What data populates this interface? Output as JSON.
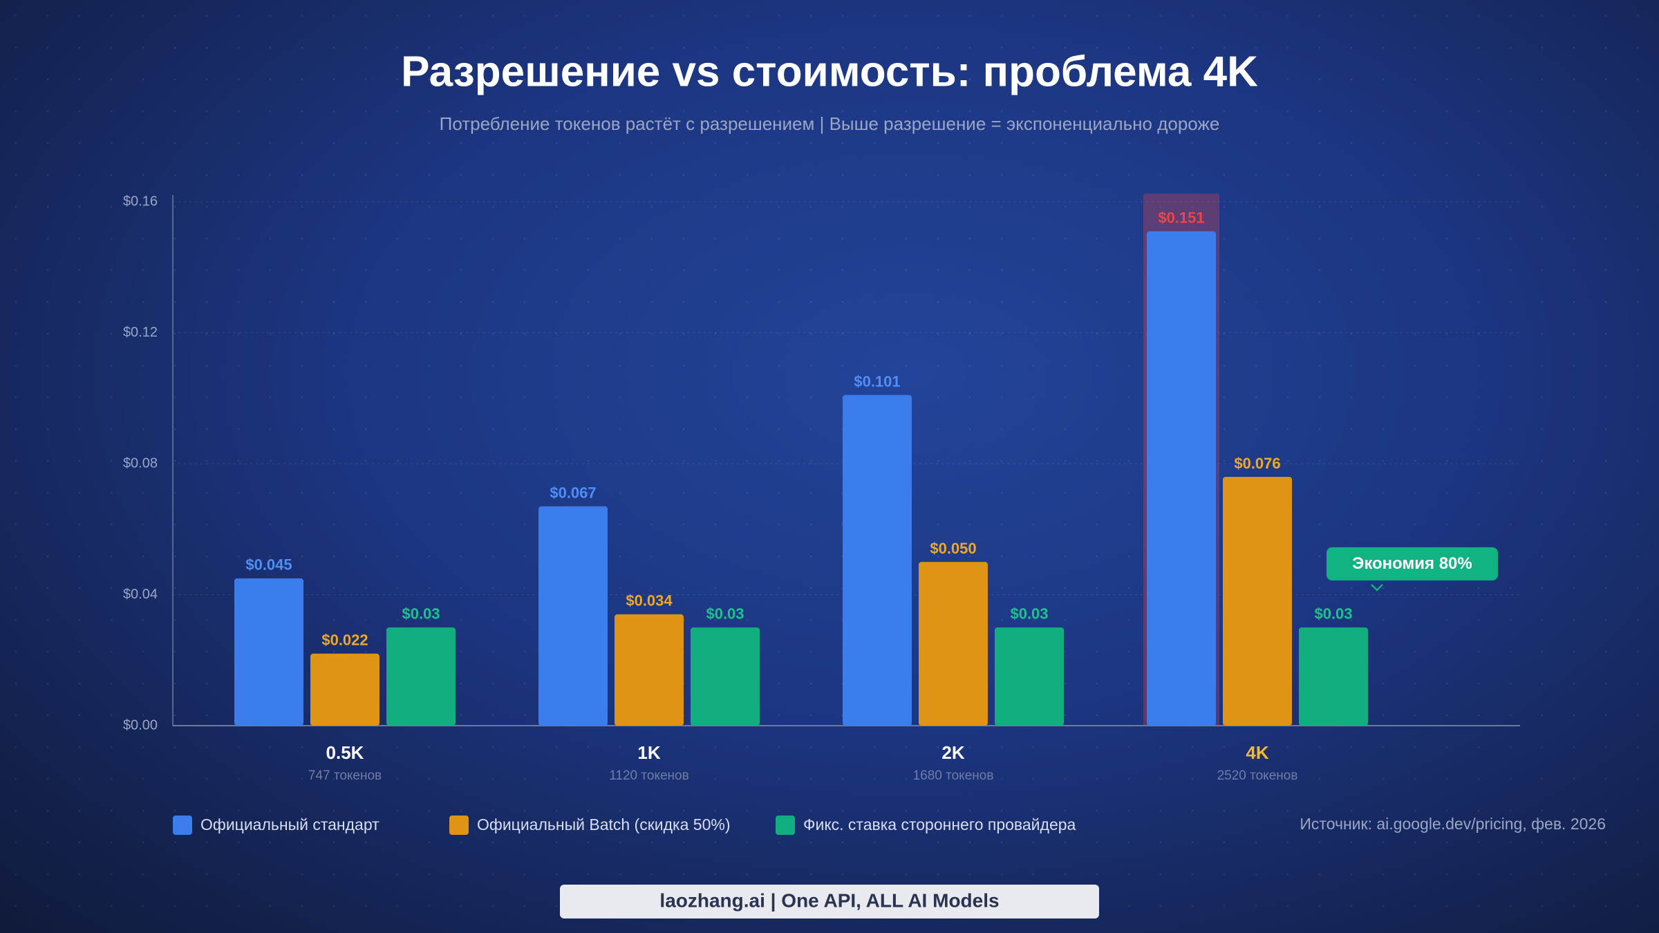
{
  "chart_data": {
    "type": "bar",
    "title": "Разрешение vs стоимость: проблема 4K",
    "subtitle": "Потребление токенов растёт с разрешением | Выше разрешение = экспоненциально дороже",
    "categories": [
      "0.5K",
      "1K",
      "2K",
      "4K"
    ],
    "category_notes": [
      "747 токенов",
      "1120 токенов",
      "1680 токенов",
      "2520 токенов"
    ],
    "series": [
      {
        "name": "Официальный стандарт",
        "color": "#3b7ded",
        "label_color": "#4f8ef5",
        "values": [
          0.045,
          0.067,
          0.101,
          0.151
        ],
        "value_labels": [
          "$0.045",
          "$0.067",
          "$0.101",
          "$0.151"
        ]
      },
      {
        "name": "Официальный Batch (скидка 50%)",
        "color": "#e09416",
        "label_color": "#f0a726",
        "values": [
          0.022,
          0.034,
          0.05,
          0.076
        ],
        "value_labels": [
          "$0.022",
          "$0.034",
          "$0.050",
          "$0.076"
        ]
      },
      {
        "name": "Фикс. ставка стороннего провайдера",
        "color": "#12ae80",
        "label_color": "#1ec28f",
        "values": [
          0.03,
          0.03,
          0.03,
          0.03
        ],
        "value_labels": [
          "$0.03",
          "$0.03",
          "$0.03",
          "$0.03"
        ]
      }
    ],
    "ylim": [
      0,
      0.16
    ],
    "yticks": [
      {
        "value": 0,
        "label": "$0.00"
      },
      {
        "value": 0.04,
        "label": "$0.04"
      },
      {
        "value": 0.08,
        "label": "$0.08"
      },
      {
        "value": 0.12,
        "label": "$0.12"
      },
      {
        "value": 0.16,
        "label": "$0.16"
      }
    ],
    "grid": true,
    "highlight_index": 3,
    "highlight_color": "#ef4444",
    "highlight_category_color": "#f5b82e",
    "annotation": "Экономия 80%",
    "source": "Источник: ai.google.dev/pricing, фев. 2026",
    "footer": "laozhang.ai | One API, ALL AI Models"
  }
}
